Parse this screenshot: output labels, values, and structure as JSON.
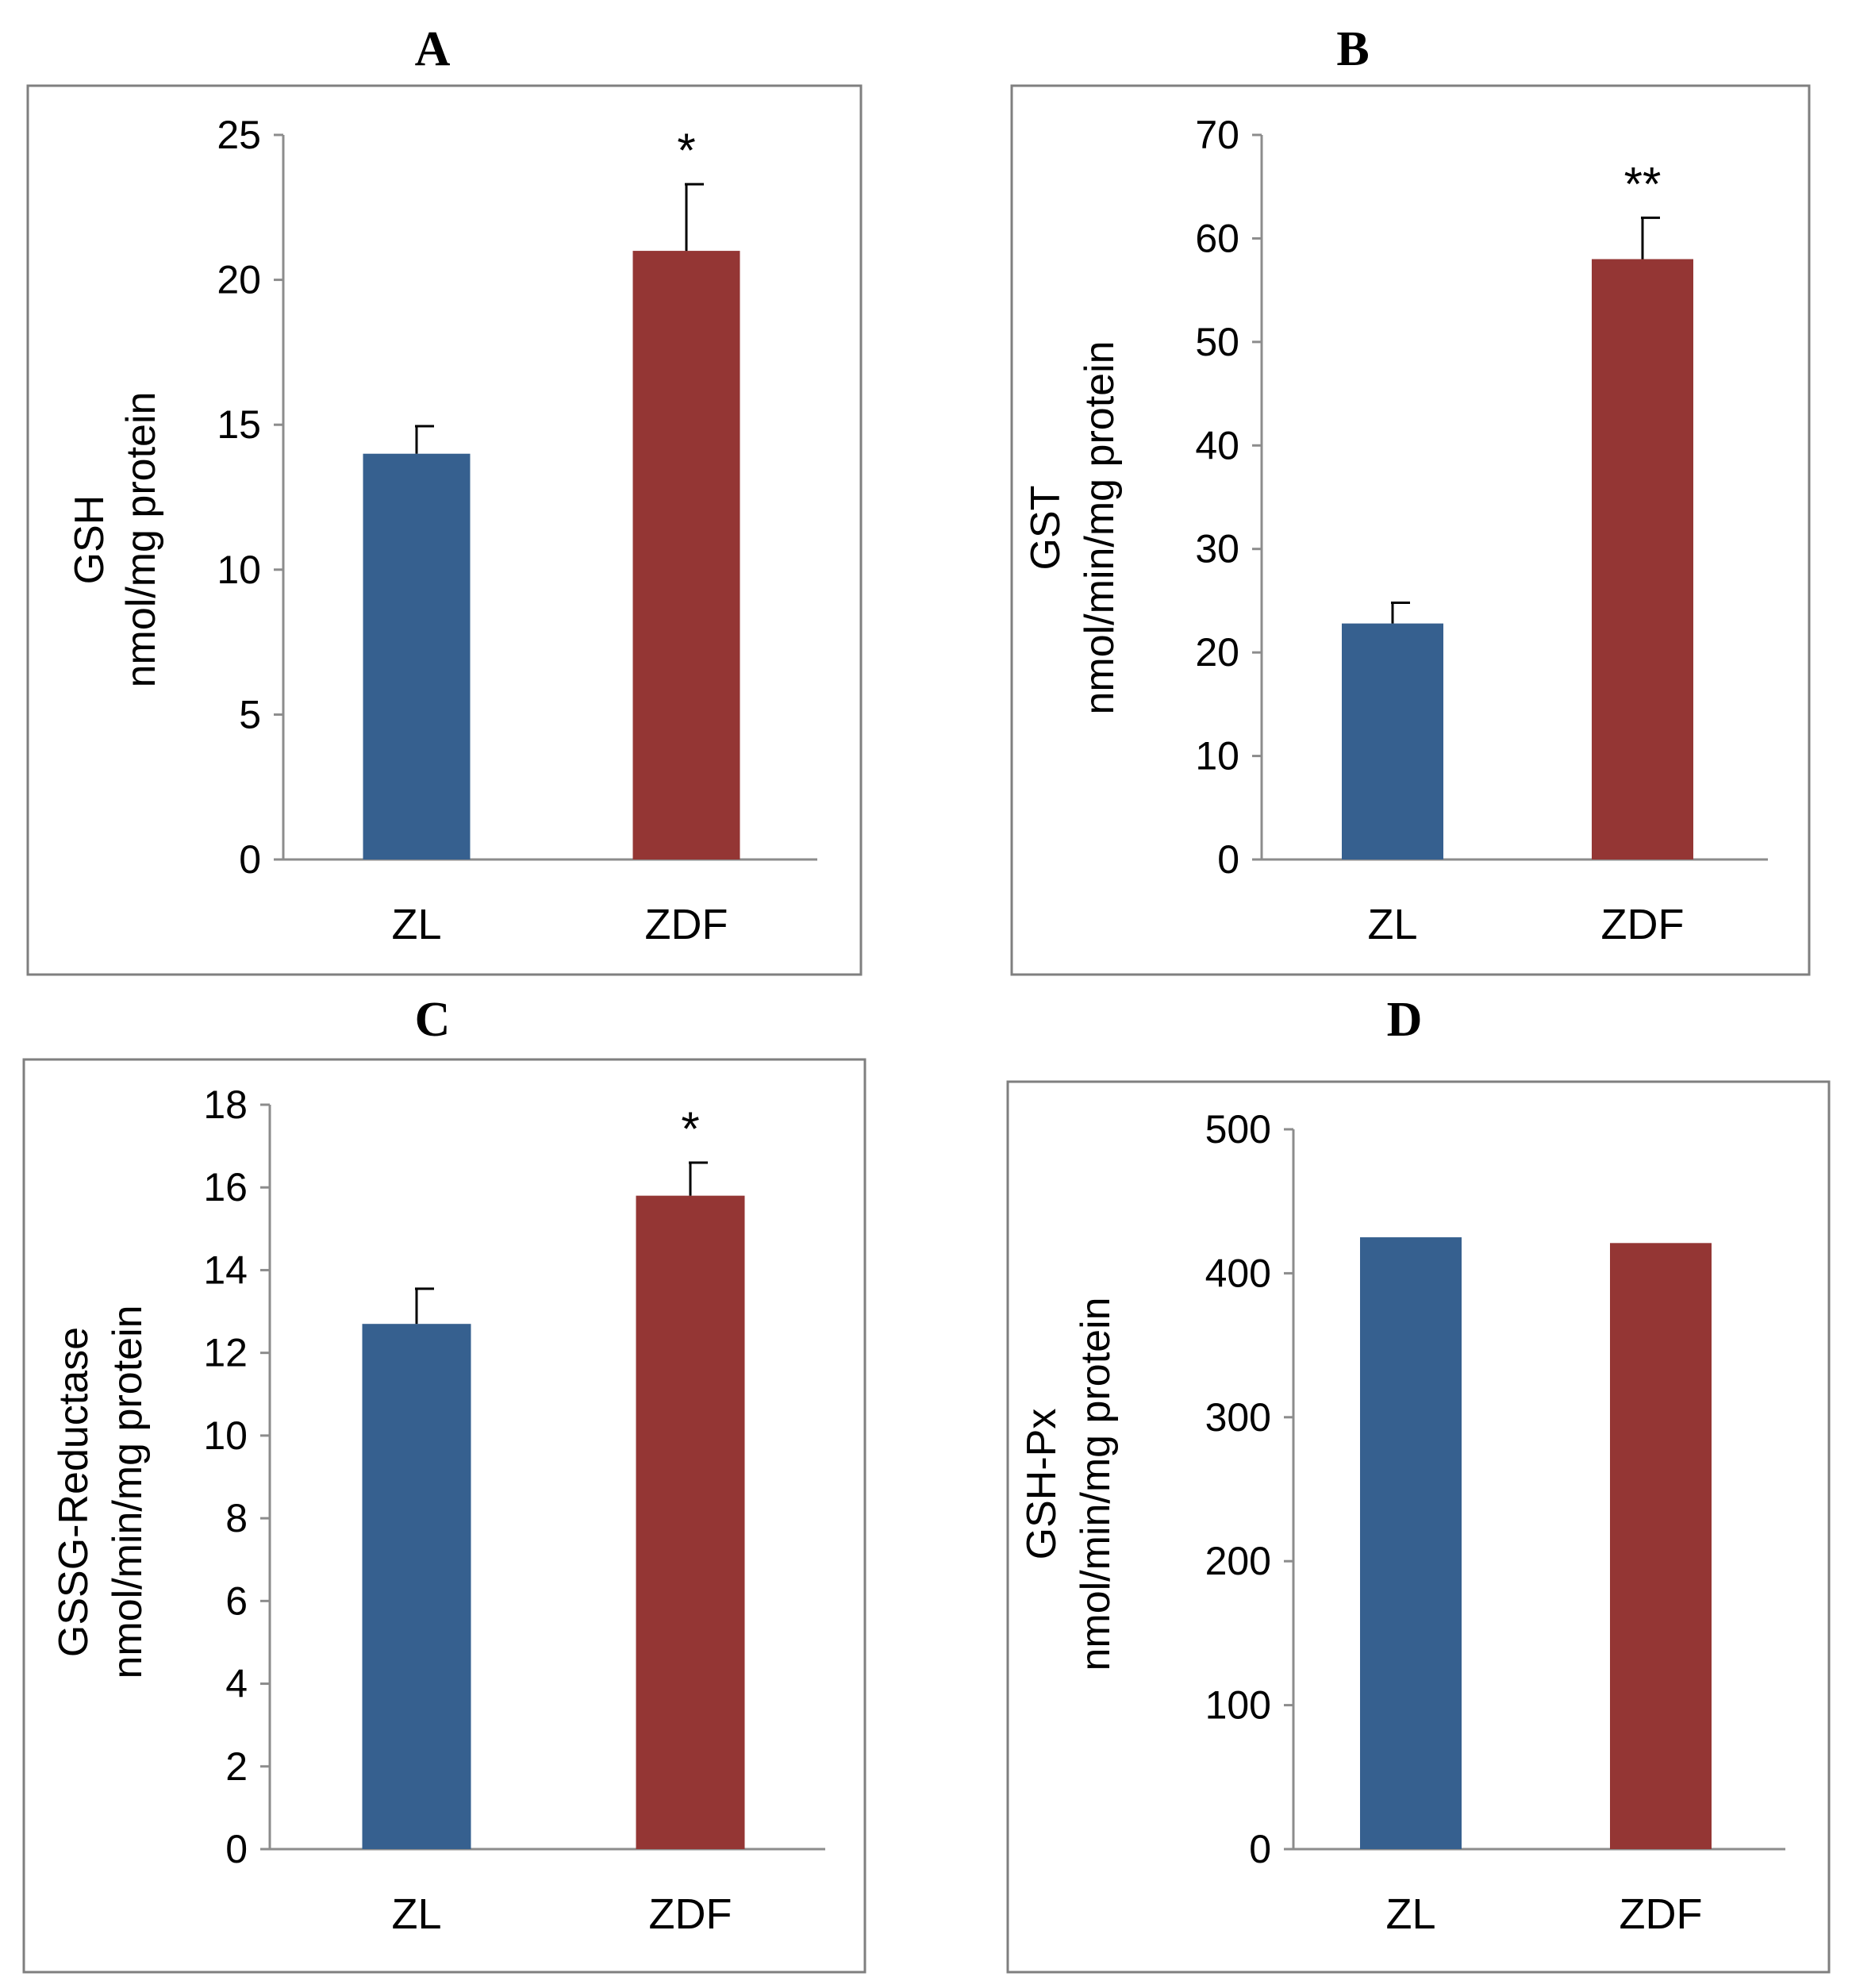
{
  "chart_data": [
    {
      "id": "A",
      "type": "bar",
      "title": "A",
      "categories": [
        "ZL",
        "ZDF"
      ],
      "values": [
        14.0,
        21.0
      ],
      "errors": [
        0.95,
        2.3
      ],
      "significance": [
        "",
        "*"
      ],
      "ylabel_lines": [
        "GSH",
        "nmol/mg protein"
      ],
      "ylim": [
        0,
        25
      ],
      "yticks": [
        0,
        5,
        10,
        15,
        20,
        25
      ],
      "colors": [
        "#36608f",
        "#943634"
      ]
    },
    {
      "id": "B",
      "type": "bar",
      "title": "B",
      "categories": [
        "ZL",
        "ZDF"
      ],
      "values": [
        22.8,
        58.0
      ],
      "errors": [
        2.0,
        4.0
      ],
      "significance": [
        "",
        "**"
      ],
      "ylabel_lines": [
        "GST",
        "nmol/min/mg protein"
      ],
      "ylim": [
        0,
        70
      ],
      "yticks": [
        0,
        10,
        20,
        30,
        40,
        50,
        60,
        70
      ],
      "colors": [
        "#36608f",
        "#943634"
      ]
    },
    {
      "id": "C",
      "type": "bar",
      "title": "C",
      "categories": [
        "ZL",
        "ZDF"
      ],
      "values": [
        12.7,
        15.8
      ],
      "errors": [
        0.85,
        0.8
      ],
      "significance": [
        "",
        "*"
      ],
      "ylabel_lines": [
        "GSSG-Reductase",
        "nmol/min/mg protein"
      ],
      "ylim": [
        0,
        18
      ],
      "yticks": [
        0,
        2,
        4,
        6,
        8,
        10,
        12,
        14,
        16,
        18
      ],
      "colors": [
        "#36608f",
        "#943634"
      ]
    },
    {
      "id": "D",
      "type": "bar",
      "title": "D",
      "categories": [
        "ZL",
        "ZDF"
      ],
      "values": [
        425,
        421
      ],
      "errors": [
        0,
        0
      ],
      "significance": [
        "",
        ""
      ],
      "ylabel_lines": [
        "GSH-Px",
        "nmol/min/mg protein"
      ],
      "ylim": [
        0,
        500
      ],
      "yticks": [
        0,
        100,
        200,
        300,
        400,
        500
      ],
      "colors": [
        "#36608f",
        "#943634"
      ]
    }
  ]
}
